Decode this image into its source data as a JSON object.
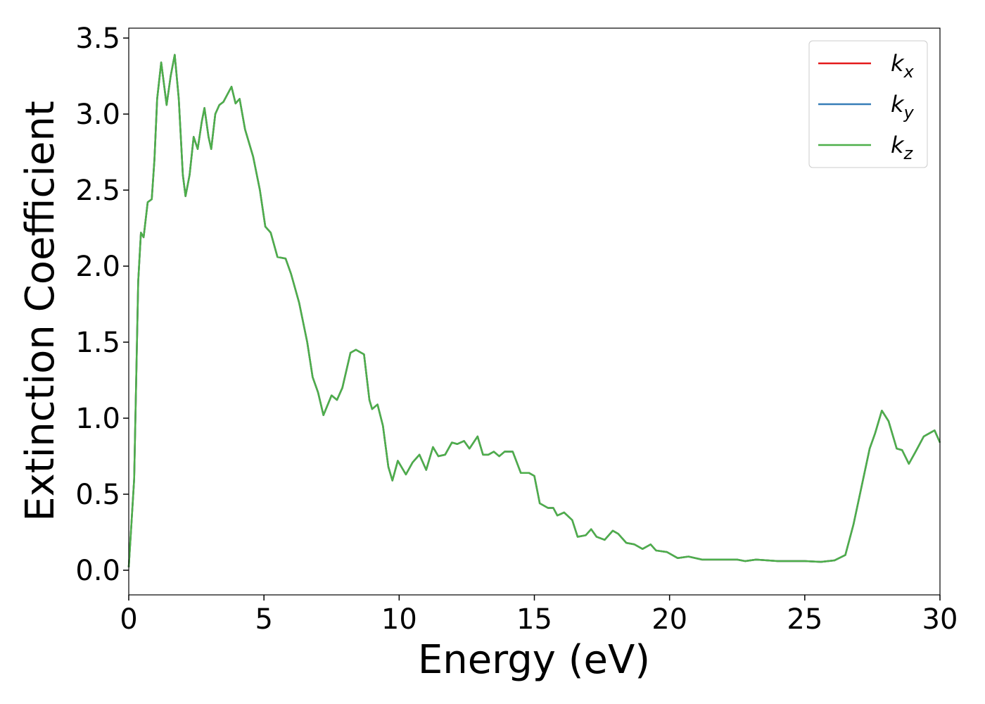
{
  "chart_data": {
    "type": "line",
    "xlabel": "Energy (eV)",
    "ylabel": "Extinction Coefficient",
    "xlim": [
      0,
      30
    ],
    "ylim": [
      -0.162,
      3.565
    ],
    "xticks": [
      0,
      5,
      10,
      15,
      20,
      25,
      30
    ],
    "yticks": [
      {
        "value": 0,
        "label": "0.0"
      },
      0.5,
      {
        "value": 1,
        "label": "1.0"
      },
      1.5,
      {
        "value": 2,
        "label": "2.0"
      },
      2.5,
      {
        "value": 3,
        "label": "3.0"
      },
      3.5
    ],
    "legend": "upper right",
    "x": [
      0,
      0.2,
      0.35,
      0.45,
      0.55,
      0.7,
      0.85,
      0.95,
      1.05,
      1.2,
      1.4,
      1.55,
      1.7,
      1.85,
      2.0,
      2.1,
      2.25,
      2.4,
      2.55,
      2.7,
      2.8,
      2.95,
      3.05,
      3.2,
      3.35,
      3.5,
      3.65,
      3.8,
      3.95,
      4.1,
      4.3,
      4.6,
      4.85,
      5.05,
      5.25,
      5.5,
      5.8,
      6.0,
      6.3,
      6.6,
      6.8,
      7.0,
      7.2,
      7.5,
      7.7,
      7.9,
      8.2,
      8.4,
      8.7,
      8.9,
      9.0,
      9.2,
      9.4,
      9.6,
      9.75,
      9.95,
      10.15,
      10.25,
      10.5,
      10.75,
      11.0,
      11.25,
      11.45,
      11.7,
      11.95,
      12.15,
      12.4,
      12.6,
      12.9,
      13.1,
      13.3,
      13.5,
      13.7,
      13.9,
      14.2,
      14.5,
      14.8,
      15.0,
      15.2,
      15.5,
      15.7,
      15.85,
      16.1,
      16.4,
      16.6,
      16.9,
      17.1,
      17.3,
      17.6,
      17.9,
      18.1,
      18.4,
      18.7,
      19.0,
      19.3,
      19.5,
      19.9,
      20.3,
      20.7,
      21.2,
      22,
      22.5,
      22.8,
      23.2,
      24,
      25,
      25.6,
      26.1,
      26.5,
      26.8,
      27.1,
      27.4,
      27.6,
      27.85,
      28.1,
      28.4,
      28.6,
      28.85,
      29.1,
      29.4,
      29.6,
      29.8,
      30
    ],
    "series": [
      {
        "name": "kx",
        "color": "#e41a1c",
        "values": [
          0.02,
          0.6,
          1.9,
          2.22,
          2.19,
          2.42,
          2.44,
          2.7,
          3.1,
          3.34,
          3.06,
          3.25,
          3.39,
          3.1,
          2.6,
          2.46,
          2.6,
          2.85,
          2.77,
          2.95,
          3.04,
          2.85,
          2.77,
          3.0,
          3.06,
          3.08,
          3.13,
          3.18,
          3.07,
          3.1,
          2.9,
          2.72,
          2.5,
          2.26,
          2.22,
          2.06,
          2.05,
          1.95,
          1.76,
          1.5,
          1.27,
          1.17,
          1.02,
          1.15,
          1.12,
          1.2,
          1.43,
          1.45,
          1.42,
          1.12,
          1.06,
          1.09,
          0.95,
          0.68,
          0.59,
          0.72,
          0.66,
          0.63,
          0.71,
          0.76,
          0.66,
          0.81,
          0.75,
          0.76,
          0.84,
          0.83,
          0.85,
          0.8,
          0.88,
          0.76,
          0.76,
          0.78,
          0.75,
          0.78,
          0.78,
          0.64,
          0.64,
          0.62,
          0.44,
          0.41,
          0.41,
          0.36,
          0.38,
          0.33,
          0.22,
          0.23,
          0.27,
          0.22,
          0.2,
          0.26,
          0.24,
          0.18,
          0.17,
          0.14,
          0.17,
          0.13,
          0.12,
          0.08,
          0.09,
          0.07,
          0.07,
          0.07,
          0.06,
          0.07,
          0.06,
          0.06,
          0.055,
          0.065,
          0.1,
          0.3,
          0.55,
          0.8,
          0.9,
          1.05,
          0.98,
          0.8,
          0.79,
          0.7,
          0.78,
          0.88,
          0.9,
          0.92,
          0.84
        ]
      },
      {
        "name": "ky",
        "color": "#377eb8",
        "values": [
          0.02,
          0.6,
          1.9,
          2.22,
          2.19,
          2.42,
          2.44,
          2.7,
          3.1,
          3.34,
          3.06,
          3.25,
          3.39,
          3.1,
          2.6,
          2.46,
          2.6,
          2.85,
          2.77,
          2.95,
          3.04,
          2.85,
          2.77,
          3.0,
          3.06,
          3.08,
          3.13,
          3.18,
          3.07,
          3.1,
          2.9,
          2.72,
          2.5,
          2.26,
          2.22,
          2.06,
          2.05,
          1.95,
          1.76,
          1.5,
          1.27,
          1.17,
          1.02,
          1.15,
          1.12,
          1.2,
          1.43,
          1.45,
          1.42,
          1.12,
          1.06,
          1.09,
          0.95,
          0.68,
          0.59,
          0.72,
          0.66,
          0.63,
          0.71,
          0.76,
          0.66,
          0.81,
          0.75,
          0.76,
          0.84,
          0.83,
          0.85,
          0.8,
          0.88,
          0.76,
          0.76,
          0.78,
          0.75,
          0.78,
          0.78,
          0.64,
          0.64,
          0.62,
          0.44,
          0.41,
          0.41,
          0.36,
          0.38,
          0.33,
          0.22,
          0.23,
          0.27,
          0.22,
          0.2,
          0.26,
          0.24,
          0.18,
          0.17,
          0.14,
          0.17,
          0.13,
          0.12,
          0.08,
          0.09,
          0.07,
          0.07,
          0.07,
          0.06,
          0.07,
          0.06,
          0.06,
          0.055,
          0.065,
          0.1,
          0.3,
          0.55,
          0.8,
          0.9,
          1.05,
          0.98,
          0.8,
          0.79,
          0.7,
          0.78,
          0.88,
          0.9,
          0.92,
          0.84
        ]
      },
      {
        "name": "kz",
        "color": "#4daf4a",
        "values": [
          0.02,
          0.6,
          1.9,
          2.22,
          2.19,
          2.42,
          2.44,
          2.7,
          3.1,
          3.34,
          3.06,
          3.25,
          3.39,
          3.1,
          2.6,
          2.46,
          2.6,
          2.85,
          2.77,
          2.95,
          3.04,
          2.85,
          2.77,
          3.0,
          3.06,
          3.08,
          3.13,
          3.18,
          3.07,
          3.1,
          2.9,
          2.72,
          2.5,
          2.26,
          2.22,
          2.06,
          2.05,
          1.95,
          1.76,
          1.5,
          1.27,
          1.17,
          1.02,
          1.15,
          1.12,
          1.2,
          1.43,
          1.45,
          1.42,
          1.12,
          1.06,
          1.09,
          0.95,
          0.68,
          0.59,
          0.72,
          0.66,
          0.63,
          0.71,
          0.76,
          0.66,
          0.81,
          0.75,
          0.76,
          0.84,
          0.83,
          0.85,
          0.8,
          0.88,
          0.76,
          0.76,
          0.78,
          0.75,
          0.78,
          0.78,
          0.64,
          0.64,
          0.62,
          0.44,
          0.41,
          0.41,
          0.36,
          0.38,
          0.33,
          0.22,
          0.23,
          0.27,
          0.22,
          0.2,
          0.26,
          0.24,
          0.18,
          0.17,
          0.14,
          0.17,
          0.13,
          0.12,
          0.08,
          0.09,
          0.07,
          0.07,
          0.07,
          0.06,
          0.07,
          0.06,
          0.06,
          0.055,
          0.065,
          0.1,
          0.3,
          0.55,
          0.8,
          0.9,
          1.05,
          0.98,
          0.8,
          0.79,
          0.7,
          0.78,
          0.88,
          0.9,
          0.92,
          0.84
        ]
      }
    ]
  }
}
